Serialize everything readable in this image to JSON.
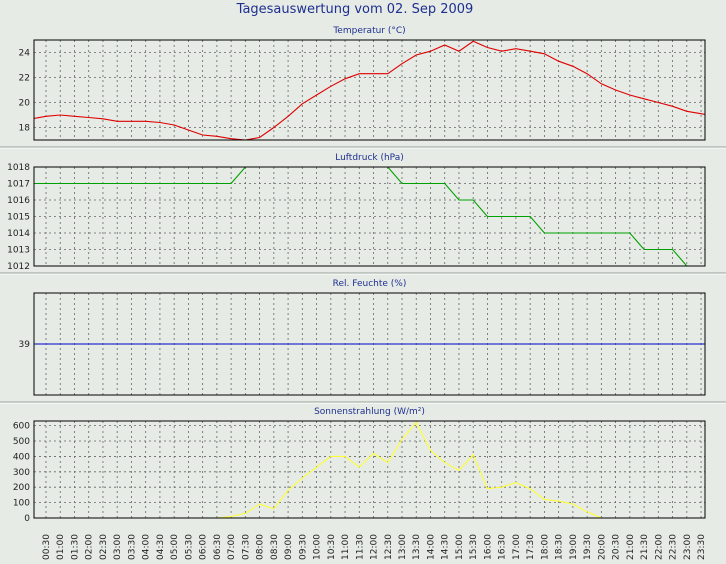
{
  "title": "Tagesauswertung vom 02. Sep 2009",
  "x_labels": [
    "00:30",
    "01:00",
    "01:30",
    "02:00",
    "02:30",
    "03:00",
    "03:30",
    "04:00",
    "04:30",
    "05:00",
    "05:30",
    "06:00",
    "06:30",
    "07:00",
    "07:30",
    "08:00",
    "08:30",
    "09:00",
    "09:30",
    "10:00",
    "10:30",
    "11:00",
    "11:30",
    "12:00",
    "12:30",
    "13:00",
    "13:30",
    "14:00",
    "14:30",
    "15:00",
    "15:30",
    "16:00",
    "16:30",
    "17:00",
    "17:30",
    "18:00",
    "18:30",
    "19:00",
    "19:30",
    "20:00",
    "20:30",
    "21:00",
    "21:30",
    "22:00",
    "22:30",
    "23:00",
    "23:30"
  ],
  "colors": {
    "temperature": "#e00000",
    "pressure": "#00a000",
    "humidity": "#0000cc",
    "radiation": "#ffff33",
    "plot_bg": "#e6ebe6",
    "grid": "#666666",
    "separator": "#ffffff"
  },
  "chart_data": [
    {
      "type": "line",
      "title": "Temperatur (°C)",
      "series": [
        {
          "values": [
            18.7,
            18.9,
            19.0,
            18.9,
            18.8,
            18.7,
            18.5,
            18.5,
            18.5,
            18.4,
            18.2,
            17.8,
            17.4,
            17.3,
            17.1,
            17.0,
            17.2,
            18.0,
            18.9,
            19.9,
            20.6,
            21.3,
            21.9,
            22.3,
            22.3,
            22.3,
            23.1,
            23.8,
            24.1,
            24.6,
            24.1,
            24.9,
            24.4,
            24.1,
            24.3,
            24.1,
            23.9,
            23.3,
            22.9,
            22.3,
            21.5,
            21.0,
            20.6,
            20.3,
            20.0,
            19.7,
            19.3,
            19.1,
            18.9
          ]
        }
      ],
      "ylim": [
        17,
        25
      ],
      "yticks": [
        18,
        20,
        22,
        24
      ]
    },
    {
      "type": "line",
      "title": "Luftdruck (hPa)",
      "series": [
        {
          "values": [
            1017,
            1017,
            1017,
            1017,
            1017,
            1017,
            1017,
            1017,
            1017,
            1017,
            1017,
            1017,
            1017,
            1017,
            1017,
            1018,
            1018,
            1018,
            1018,
            1018,
            1018,
            1018,
            1018,
            1018,
            1018,
            1018,
            1017,
            1017,
            1017,
            1017,
            1016,
            1016,
            1015,
            1015,
            1015,
            1015,
            1014,
            1014,
            1014,
            1014,
            1014,
            1014,
            1014,
            1013,
            1013,
            1013,
            1012,
            1012,
            1012
          ]
        }
      ],
      "ylim": [
        1012,
        1018
      ],
      "yticks": [
        1012,
        1013,
        1014,
        1015,
        1016,
        1017,
        1018
      ]
    },
    {
      "type": "line",
      "title": "Rel. Feuchte (%)",
      "series": [
        {
          "values": [
            39,
            39,
            39,
            39,
            39,
            39,
            39,
            39,
            39,
            39,
            39,
            39,
            39,
            39,
            39,
            39,
            39,
            39,
            39,
            39,
            39,
            39,
            39,
            39,
            39,
            39,
            39,
            39,
            39,
            39,
            39,
            39,
            39,
            39,
            39,
            39,
            39,
            39,
            39,
            39,
            39,
            39,
            39,
            39,
            39,
            39,
            39,
            39,
            39
          ]
        }
      ],
      "ylim": [
        36,
        42
      ],
      "yticks": [
        39
      ]
    },
    {
      "type": "line",
      "title": "Sonnenstrahlung (W/m²)",
      "series": [
        {
          "values": [
            0,
            0,
            0,
            0,
            0,
            0,
            0,
            0,
            0,
            0,
            0,
            0,
            0,
            0,
            10,
            30,
            90,
            60,
            180,
            260,
            330,
            400,
            400,
            330,
            420,
            360,
            510,
            620,
            440,
            360,
            310,
            410,
            190,
            200,
            230,
            190,
            120,
            110,
            90,
            40,
            0,
            0,
            0,
            0,
            0,
            0,
            0,
            0,
            0
          ]
        }
      ],
      "ylim": [
        0,
        630
      ],
      "yticks": [
        0,
        100,
        200,
        300,
        400,
        500,
        600
      ]
    }
  ]
}
